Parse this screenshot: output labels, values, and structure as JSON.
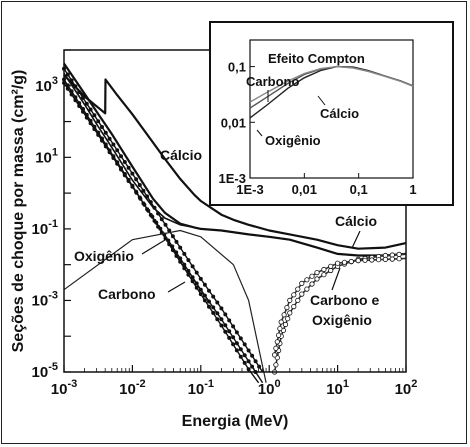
{
  "chart_data": [
    {
      "type": "line",
      "title": "",
      "xlabel": "Energia (MeV)",
      "ylabel": "Seções de choque por massa (cm²/g)",
      "x_scale": "log",
      "y_scale": "log",
      "xlim": [
        0.001,
        100
      ],
      "ylim": [
        1e-05,
        10000
      ],
      "x_ticks": [
        {
          "base": "10",
          "exp": "-3"
        },
        {
          "base": "10",
          "exp": "-2"
        },
        {
          "base": "10",
          "exp": "-1"
        },
        {
          "base": "10",
          "exp": "0"
        },
        {
          "base": "10",
          "exp": "1"
        },
        {
          "base": "10",
          "exp": "2"
        }
      ],
      "y_ticks": [
        {
          "base": "10",
          "exp": "-5"
        },
        {
          "base": "10",
          "exp": "-3"
        },
        {
          "base": "10",
          "exp": "-1"
        },
        {
          "base": "10",
          "exp": "1"
        },
        {
          "base": "10",
          "exp": "3"
        }
      ],
      "grid": false,
      "legend": "none",
      "annotations": [
        "Cálcio",
        "Oxigênio",
        "Carbono",
        "Cálcio",
        "Carbono e",
        "Oxigênio"
      ],
      "series": [
        {
          "x": [
            0.001,
            0.002,
            0.004,
            0.00404,
            0.006,
            0.01,
            0.02,
            0.03,
            0.05,
            0.08,
            0.1,
            0.2,
            0.3,
            0.5,
            1,
            2,
            5,
            10,
            20,
            50,
            100
          ],
          "values": [
            2000,
            500,
            170,
            1500,
            550,
            160,
            26,
            9,
            2.5,
            0.9,
            0.6,
            0.25,
            0.18,
            0.13,
            0.09,
            0.07,
            0.05,
            0.035,
            0.028,
            0.03,
            0.04
          ]
        },
        {
          "x": [
            0.001,
            0.002,
            0.003,
            0.005,
            0.01,
            0.02,
            0.03,
            0.05,
            0.08,
            0.1,
            0.2,
            0.5,
            1,
            2,
            5,
            10,
            20,
            50,
            100
          ],
          "values": [
            4200,
            600,
            190,
            45,
            5.5,
            0.7,
            0.28,
            0.14,
            0.11,
            0.1,
            0.09,
            0.07,
            0.06,
            0.05,
            0.03,
            0.02,
            0.018,
            0.018,
            0.02
          ]
        },
        {
          "x": [
            0.001,
            0.002,
            0.003,
            0.005,
            0.01,
            0.02,
            0.03,
            0.05,
            0.08,
            0.1,
            0.2,
            0.5,
            1,
            2,
            5,
            10,
            20,
            50,
            100
          ],
          "values": [
            2200,
            300,
            85,
            19,
            2.3,
            0.4,
            0.2,
            0.13,
            0.11,
            0.1,
            0.09,
            0.07,
            0.06,
            0.05,
            0.03,
            0.02,
            0.018,
            0.018,
            0.02
          ]
        },
        {
          "x": [
            0.001,
            0.01,
            0.05,
            0.1,
            0.2,
            0.5,
            0.8
          ],
          "values": [
            1200,
            1.5,
            0.015,
            0.002,
            0.0003,
            2e-05,
            5e-06
          ]
        },
        {
          "x": [
            0.001,
            0.01,
            0.05,
            0.1,
            0.2,
            0.5,
            0.8
          ],
          "values": [
            3000,
            3.5,
            0.03,
            0.004,
            0.0006,
            4e-05,
            1e-05
          ]
        },
        {
          "x": [
            0.001,
            0.01,
            0.05,
            0.1,
            0.2,
            0.5,
            0.7
          ],
          "values": [
            1500,
            1.6,
            0.012,
            0.0015,
            0.0002,
            1.2e-05,
            5e-06
          ]
        },
        {
          "x": [
            1.2,
            1.5,
            2,
            3,
            5,
            10,
            20,
            50,
            100
          ],
          "values": [
            1e-05,
            0.0001,
            0.00045,
            0.0015,
            0.004,
            0.009,
            0.014,
            0.018,
            0.02
          ]
        },
        {
          "x": [
            1.2,
            1.5,
            2,
            3,
            5,
            10,
            20,
            50,
            100
          ],
          "values": [
            3e-05,
            0.00025,
            0.001,
            0.003,
            0.006,
            0.011,
            0.013,
            0.014,
            0.015
          ]
        },
        {
          "x": [
            0.001,
            0.01,
            0.05,
            0.1,
            0.3,
            0.5,
            0.9
          ],
          "values": [
            0.002,
            0.05,
            0.09,
            0.06,
            0.01,
            0.001,
            5e-06
          ]
        }
      ]
    },
    {
      "type": "line",
      "title": "Efeito Compton",
      "xlabel": "",
      "ylabel": "",
      "x_scale": "log",
      "y_scale": "log",
      "xlim": [
        0.001,
        1
      ],
      "ylim": [
        0.001,
        0.3
      ],
      "x_ticks": [
        "1E-3",
        "0,01",
        "0,1",
        "1"
      ],
      "y_ticks": [
        "1E-3",
        "0,01",
        "0,1"
      ],
      "annotations": [
        "Carbono",
        "Cálcio",
        "Oxigênio"
      ],
      "series": [
        {
          "x": [
            0.001,
            0.002,
            0.005,
            0.01,
            0.02,
            0.04,
            0.08,
            0.15,
            0.3,
            0.6,
            1
          ],
          "values": [
            0.012,
            0.02,
            0.041,
            0.063,
            0.085,
            0.1,
            0.098,
            0.085,
            0.068,
            0.055,
            0.045
          ]
        },
        {
          "x": [
            0.001,
            0.002,
            0.005,
            0.01,
            0.02,
            0.04,
            0.08,
            0.15,
            0.3,
            0.6,
            1
          ],
          "values": [
            0.018,
            0.028,
            0.05,
            0.072,
            0.09,
            0.1,
            0.095,
            0.083,
            0.068,
            0.055,
            0.045
          ]
        },
        {
          "x": [
            0.001,
            0.002,
            0.005,
            0.01,
            0.02,
            0.04,
            0.08,
            0.15,
            0.3,
            0.6,
            1
          ],
          "values": [
            0.023,
            0.034,
            0.055,
            0.075,
            0.092,
            0.1,
            0.094,
            0.082,
            0.067,
            0.054,
            0.044
          ]
        }
      ]
    }
  ]
}
